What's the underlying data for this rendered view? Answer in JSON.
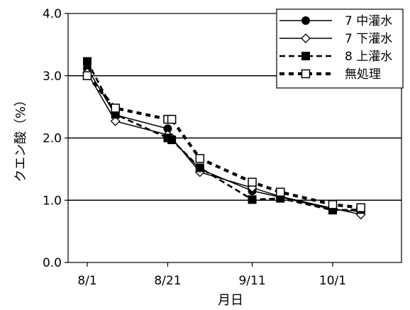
{
  "chart_data": {
    "type": "line",
    "xlabel": "月日",
    "ylabel": "クエン酸（%）",
    "ylim": [
      0,
      4
    ],
    "y_ticks": [
      "0.0",
      "1.0",
      "2.0",
      "3.0",
      "4.0"
    ],
    "x_ticks": [
      "8/1",
      "8/21",
      "9/11",
      "10/1"
    ],
    "grid": "horizontal",
    "legend_position": "top-right",
    "series": [
      {
        "name": "7 中灌水",
        "style": "solid",
        "marker": "circle-filled",
        "color": "#000000",
        "x": [
          "8/1",
          "8/8",
          "8/21",
          "8/22",
          "8/29",
          "9/11",
          "9/18",
          "10/1",
          "10/8"
        ],
        "values": [
          3.12,
          2.37,
          2.15,
          1.98,
          1.5,
          1.15,
          1.05,
          0.85,
          0.82
        ]
      },
      {
        "name": "7 下灌水",
        "style": "solid",
        "marker": "diamond-open",
        "color": "#000000",
        "x": [
          "8/1",
          "8/8",
          "8/21",
          "8/22",
          "8/29",
          "9/11",
          "9/18",
          "10/1",
          "10/8"
        ],
        "values": [
          3.05,
          2.27,
          2.05,
          2.0,
          1.45,
          1.2,
          1.06,
          0.87,
          0.77
        ]
      },
      {
        "name": "8 上灌水",
        "style": "dashed",
        "marker": "square-filled",
        "color": "#000000",
        "x": [
          "8/1",
          "8/8",
          "8/21",
          "8/22",
          "8/29",
          "9/11",
          "9/18",
          "10/1",
          "10/8"
        ],
        "values": [
          3.23,
          2.38,
          2.0,
          1.97,
          1.52,
          1.01,
          1.03,
          0.84,
          0.85
        ]
      },
      {
        "name": "無処理",
        "style": "dotted-thick",
        "marker": "square-open",
        "color": "#000000",
        "x": [
          "8/1",
          "8/8",
          "8/21",
          "8/22",
          "8/29",
          "9/11",
          "9/18",
          "10/1",
          "10/8"
        ],
        "values": [
          3.0,
          2.48,
          2.3,
          2.3,
          1.67,
          1.29,
          1.13,
          0.93,
          0.88
        ]
      }
    ]
  }
}
